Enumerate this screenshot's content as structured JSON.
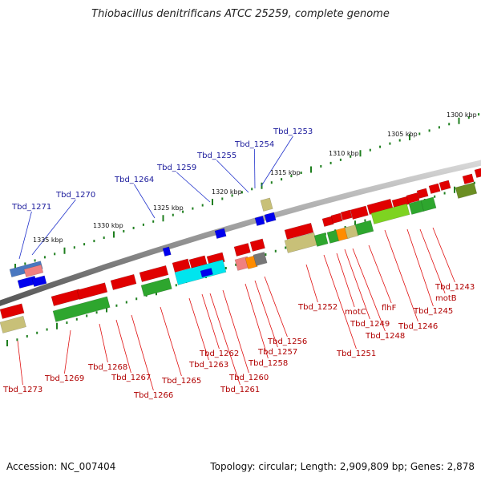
{
  "title": "Thiobacillus denitrificans ATCC 25259, complete genome",
  "footer": {
    "accession": "Accession: NC_007404",
    "stats": "Topology: circular; Length: 2,909,809 bp; Genes: 2,878"
  },
  "colors": {
    "red": "#e00000",
    "green": "#2ea62e",
    "lime": "#7ed321",
    "olive": "#6b8e23",
    "cyan": "#00e5ee",
    "blue": "#0000ee",
    "orange": "#ff8c00",
    "tan": "#c8c078",
    "pink": "#f08080",
    "gray": "#777777",
    "steel": "#4a78c0"
  },
  "kbp_ticks": [
    "1300 kbp",
    "1305 kbp",
    "1310 kbp",
    "1315 kbp",
    "1320 kbp",
    "1325 kbp",
    "1330 kbp",
    "1335 kbp"
  ],
  "blue_labels": [
    "Tbd_1253",
    "Tbd_1254",
    "Tbd_1255",
    "Tbd_1259",
    "Tbd_1264",
    "Tbd_1270",
    "Tbd_1271"
  ],
  "red_labels": [
    "Tbd_1243",
    "motB",
    "Tbd_1245",
    "Tbd_1246",
    "Tbd_1248",
    "flhF",
    "Tbd_1249",
    "motC",
    "Tbd_1251",
    "Tbd_1252",
    "Tbd_1256",
    "Tbd_1257",
    "Tbd_1258",
    "Tbd_1260",
    "Tbd_1261",
    "Tbd_1262",
    "Tbd_1263",
    "Tbd_1265",
    "Tbd_1266",
    "Tbd_1267",
    "Tbd_1268",
    "Tbd_1269",
    "Tbd_1273"
  ]
}
